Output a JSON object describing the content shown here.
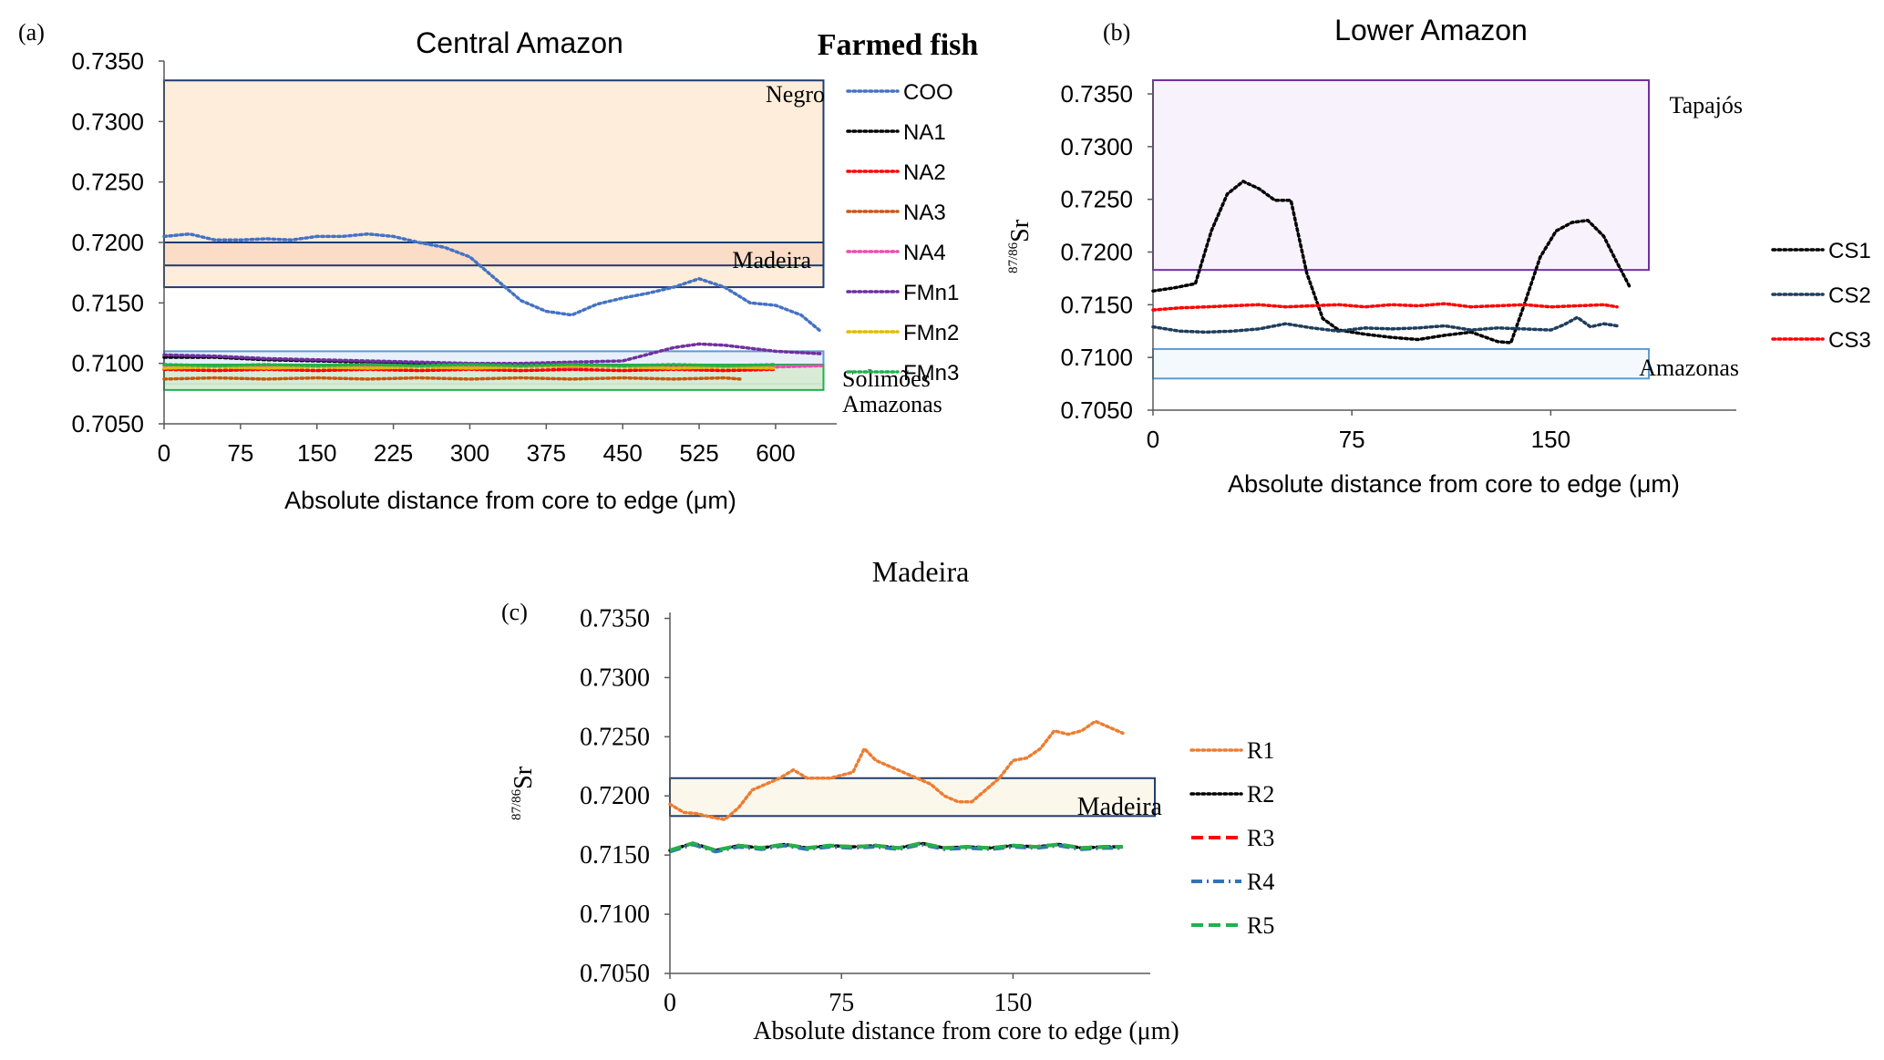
{
  "figure": {
    "panel_a": {
      "letter": "(a)",
      "title": "Central Amazon",
      "group_title": "Farmed fish",
      "xlabel": "Absolute distance from core to edge (μm)"
    },
    "panel_b": {
      "letter": "(b)",
      "title": "Lower Amazon",
      "ylabel": "Sr",
      "ylabel_sup": "87/86",
      "xlabel": "Absolute distance from core to edge  (μm)"
    },
    "panel_c": {
      "letter": "(c)",
      "title": "Madeira",
      "ylabel": "Sr",
      "ylabel_sup": "87/86",
      "xlabel": "Absolute distance from core to edge (μm)"
    }
  },
  "chart_data": [
    {
      "id": "a",
      "type": "line",
      "title": "Central Amazon",
      "xlabel": "Absolute distance from core to edge (μm)",
      "ylabel": "",
      "xlim": [
        0,
        660
      ],
      "ylim": [
        0.705,
        0.735
      ],
      "xticks": [
        "0",
        "75",
        "150",
        "225",
        "300",
        "375",
        "450",
        "525",
        "600"
      ],
      "yticks": [
        "0.7050",
        "0.7100",
        "0.7150",
        "0.7200",
        "0.7250",
        "0.7300",
        "0.7350"
      ],
      "legend_position": "right",
      "regions": [
        {
          "name": "Negro",
          "y": [
            0.7163,
            0.7334
          ],
          "x": [
            0,
            647
          ],
          "fill": "#fdebd6",
          "stroke": "#1f3b73"
        },
        {
          "name": "Madeira",
          "y": [
            0.7181,
            0.72
          ],
          "x": [
            0,
            647
          ],
          "fill": "#f9d9c4",
          "stroke": "#1f3b73"
        },
        {
          "name": "Solimões",
          "y": [
            0.7083,
            0.711
          ],
          "x": [
            0,
            647
          ],
          "fill": "#e6eef8",
          "stroke": "#5b9bd5"
        },
        {
          "name": "Amazonas",
          "y": [
            0.7078,
            0.7099
          ],
          "x": [
            0,
            647
          ],
          "fill": "#d6ead0",
          "stroke": "#22b14c"
        }
      ],
      "series": [
        {
          "name": "COO",
          "color": "#4472c4",
          "style": "dotted",
          "x": [
            0,
            25,
            50,
            75,
            100,
            125,
            150,
            175,
            200,
            225,
            250,
            275,
            300,
            325,
            350,
            375,
            400,
            425,
            450,
            475,
            500,
            525,
            550,
            575,
            600,
            625,
            645
          ],
          "y": [
            0.7205,
            0.7207,
            0.7202,
            0.7202,
            0.7203,
            0.7202,
            0.7205,
            0.7205,
            0.7207,
            0.7205,
            0.72,
            0.7196,
            0.7188,
            0.717,
            0.7152,
            0.7143,
            0.714,
            0.7149,
            0.7154,
            0.7158,
            0.7163,
            0.717,
            0.7163,
            0.715,
            0.7148,
            0.714,
            0.7126
          ]
        },
        {
          "name": "NA1",
          "color": "#000000",
          "style": "dotted",
          "x": [
            0,
            50,
            100,
            150,
            200,
            250,
            300,
            350,
            400,
            450,
            500,
            550,
            600
          ],
          "y": [
            0.7105,
            0.7105,
            0.7103,
            0.7102,
            0.7101,
            0.71,
            0.71,
            0.7099,
            0.7099,
            0.7098,
            0.7098,
            0.7097,
            0.7097
          ]
        },
        {
          "name": "NA2",
          "color": "#ff0000",
          "style": "dotted",
          "x": [
            0,
            50,
            100,
            150,
            200,
            250,
            300,
            350,
            400,
            450,
            500,
            550,
            600
          ],
          "y": [
            0.7095,
            0.7094,
            0.7095,
            0.7094,
            0.7095,
            0.7094,
            0.7095,
            0.7094,
            0.7095,
            0.7094,
            0.7095,
            0.7094,
            0.7095
          ]
        },
        {
          "name": "NA3",
          "color": "#c55a11",
          "style": "dotted",
          "x": [
            0,
            50,
            100,
            150,
            200,
            250,
            300,
            350,
            400,
            450,
            500,
            550,
            565
          ],
          "y": [
            0.7087,
            0.7088,
            0.7087,
            0.7088,
            0.7087,
            0.7088,
            0.7087,
            0.7088,
            0.7087,
            0.7088,
            0.7087,
            0.7088,
            0.7087
          ]
        },
        {
          "name": "NA4",
          "color": "#e84fb0",
          "style": "dotted",
          "x": [
            0,
            50,
            100,
            150,
            200,
            250,
            300,
            350,
            400,
            450,
            500,
            550,
            600,
            645
          ],
          "y": [
            0.7098,
            0.7098,
            0.7097,
            0.7098,
            0.7097,
            0.7098,
            0.7097,
            0.7098,
            0.7097,
            0.7098,
            0.7097,
            0.7098,
            0.7097,
            0.7098
          ]
        },
        {
          "name": "FMn1",
          "color": "#7030a0",
          "style": "dotted",
          "x": [
            0,
            50,
            100,
            150,
            200,
            250,
            300,
            350,
            400,
            450,
            500,
            525,
            550,
            600,
            645
          ],
          "y": [
            0.7107,
            0.7106,
            0.7104,
            0.7103,
            0.7102,
            0.7101,
            0.71,
            0.71,
            0.7101,
            0.7102,
            0.7113,
            0.7116,
            0.7115,
            0.711,
            0.7108
          ]
        },
        {
          "name": "FMn2",
          "color": "#e6b800",
          "style": "dotted",
          "x": [
            0,
            50,
            100,
            150,
            200,
            250,
            300,
            350,
            400,
            450,
            500,
            550,
            600
          ],
          "y": [
            0.7096,
            0.7097,
            0.7096,
            0.7097,
            0.7096,
            0.7097,
            0.7096,
            0.7097,
            0.7098,
            0.7097,
            0.7096,
            0.7097,
            0.7096
          ]
        },
        {
          "name": "FMn3",
          "color": "#22b14c",
          "style": "dotted",
          "x": [
            0,
            50,
            100,
            150,
            200,
            250,
            300,
            350,
            400,
            450,
            500,
            550,
            600
          ],
          "y": [
            0.7099,
            0.7098,
            0.7099,
            0.7098,
            0.7099,
            0.7098,
            0.7099,
            0.7098,
            0.7099,
            0.7098,
            0.7099,
            0.7098,
            0.7099
          ]
        }
      ]
    },
    {
      "id": "b",
      "type": "line",
      "title": "Lower Amazon",
      "xlabel": "Absolute distance from core to edge  (μm)",
      "ylabel": "87/86Sr",
      "xlim": [
        0,
        220
      ],
      "ylim": [
        0.705,
        0.7363
      ],
      "xticks": [
        "0",
        "75",
        "150"
      ],
      "yticks": [
        "0.7050",
        "0.7100",
        "0.7150",
        "0.7200",
        "0.7250",
        "0.7300",
        "0.7350"
      ],
      "legend_position": "right",
      "regions": [
        {
          "name": "Tapajós",
          "y": [
            0.7183,
            0.7363
          ],
          "x": [
            0,
            187
          ],
          "fill": "#f6f1fb",
          "stroke": "#7030a0"
        },
        {
          "name": "Amazonas",
          "y": [
            0.708,
            0.7108
          ],
          "x": [
            0,
            187
          ],
          "fill": "#f2f8fd",
          "stroke": "#5b9bd5"
        }
      ],
      "series": [
        {
          "name": "CS1",
          "color": "#000000",
          "style": "dotted",
          "x": [
            0,
            8,
            16,
            22,
            28,
            34,
            40,
            46,
            52,
            58,
            64,
            70,
            80,
            90,
            100,
            110,
            120,
            130,
            135,
            140,
            146,
            152,
            158,
            164,
            170,
            175,
            180
          ],
          "y": [
            0.7163,
            0.7166,
            0.717,
            0.722,
            0.7255,
            0.7267,
            0.726,
            0.7249,
            0.7249,
            0.718,
            0.7137,
            0.7126,
            0.7122,
            0.7119,
            0.7117,
            0.7121,
            0.7124,
            0.7115,
            0.7114,
            0.715,
            0.7195,
            0.722,
            0.7228,
            0.723,
            0.7215,
            0.719,
            0.7166
          ]
        },
        {
          "name": "CS2",
          "color": "#1f3d5c",
          "style": "dotted",
          "x": [
            0,
            10,
            20,
            30,
            40,
            50,
            60,
            70,
            80,
            90,
            100,
            110,
            120,
            130,
            140,
            150,
            155,
            160,
            165,
            170,
            175
          ],
          "y": [
            0.7129,
            0.7125,
            0.7124,
            0.7125,
            0.7127,
            0.7132,
            0.7128,
            0.7125,
            0.7128,
            0.7127,
            0.7128,
            0.713,
            0.7126,
            0.7128,
            0.7127,
            0.7126,
            0.7131,
            0.7138,
            0.7129,
            0.7132,
            0.713
          ]
        },
        {
          "name": "CS3",
          "color": "#ff0000",
          "style": "dotted",
          "x": [
            0,
            10,
            20,
            30,
            40,
            50,
            60,
            70,
            80,
            90,
            100,
            110,
            120,
            130,
            140,
            150,
            160,
            170,
            175
          ],
          "y": [
            0.7145,
            0.7147,
            0.7148,
            0.7149,
            0.715,
            0.7148,
            0.7149,
            0.715,
            0.7148,
            0.715,
            0.7149,
            0.7151,
            0.7148,
            0.7149,
            0.715,
            0.7148,
            0.7149,
            0.715,
            0.7148
          ]
        }
      ]
    },
    {
      "id": "c",
      "type": "line",
      "title": "Madeira",
      "xlabel": "Absolute distance from core to edge (μm)",
      "ylabel": "87/86Sr",
      "xlim": [
        0,
        210
      ],
      "ylim": [
        0.705,
        0.7355
      ],
      "xticks": [
        "0",
        "75",
        "150"
      ],
      "yticks": [
        "0.7050",
        "0.7100",
        "0.7150",
        "0.7200",
        "0.7250",
        "0.7300",
        "0.7350"
      ],
      "legend_position": "right",
      "regions": [
        {
          "name": "Madeira",
          "y": [
            0.7183,
            0.7215
          ],
          "x": [
            0,
            212
          ],
          "fill": "#fbf6e9",
          "stroke": "#1f3b73"
        }
      ],
      "series": [
        {
          "name": "R1",
          "color": "#ed7d31",
          "style": "dotted",
          "x": [
            0,
            6,
            12,
            18,
            24,
            30,
            36,
            42,
            48,
            54,
            60,
            70,
            80,
            85,
            90,
            96,
            102,
            108,
            114,
            120,
            126,
            132,
            138,
            144,
            150,
            156,
            162,
            168,
            174,
            180,
            186,
            192,
            198
          ],
          "y": [
            0.7193,
            0.7186,
            0.7185,
            0.7182,
            0.718,
            0.719,
            0.7205,
            0.721,
            0.7215,
            0.7222,
            0.7215,
            0.7215,
            0.722,
            0.724,
            0.723,
            0.7225,
            0.722,
            0.7215,
            0.721,
            0.72,
            0.7195,
            0.7195,
            0.7205,
            0.7215,
            0.723,
            0.7232,
            0.724,
            0.7255,
            0.7252,
            0.7255,
            0.7263,
            0.7258,
            0.7253
          ]
        },
        {
          "name": "R2",
          "color": "#000000",
          "style": "dotted",
          "x": [
            0,
            10,
            20,
            30,
            40,
            50,
            60,
            70,
            80,
            90,
            100,
            110,
            120,
            130,
            140,
            150,
            160,
            170,
            180,
            190,
            198
          ],
          "y": [
            0.7154,
            0.716,
            0.7154,
            0.7158,
            0.7156,
            0.7159,
            0.7156,
            0.7158,
            0.7157,
            0.7158,
            0.7156,
            0.716,
            0.7156,
            0.7157,
            0.7156,
            0.7158,
            0.7157,
            0.7159,
            0.7156,
            0.7157,
            0.7157
          ]
        },
        {
          "name": "R3",
          "color": "#ff0000",
          "style": "dashed",
          "x": [
            0,
            10,
            20,
            30,
            40,
            50,
            60,
            70,
            80,
            90,
            100,
            110,
            120,
            130,
            140,
            150,
            160,
            170,
            180,
            190,
            198
          ],
          "y": [
            0.7154,
            0.716,
            0.7154,
            0.7158,
            0.7156,
            0.7159,
            0.7156,
            0.7158,
            0.7157,
            0.7158,
            0.7156,
            0.716,
            0.7156,
            0.7157,
            0.7156,
            0.7158,
            0.7157,
            0.7159,
            0.7156,
            0.7157,
            0.7157
          ]
        },
        {
          "name": "R4",
          "color": "#2e75b6",
          "style": "dashdot",
          "x": [
            0,
            10,
            20,
            30,
            40,
            50,
            60,
            70,
            80,
            90,
            100,
            110,
            120,
            130,
            140,
            150,
            160,
            170,
            180,
            190,
            198
          ],
          "y": [
            0.7153,
            0.7159,
            0.7153,
            0.7157,
            0.7155,
            0.7158,
            0.7155,
            0.7157,
            0.7156,
            0.7157,
            0.7155,
            0.7159,
            0.7155,
            0.7156,
            0.7155,
            0.7157,
            0.7156,
            0.7158,
            0.7155,
            0.7156,
            0.7156
          ]
        },
        {
          "name": "R5",
          "color": "#22b14c",
          "style": "dashed",
          "x": [
            0,
            10,
            20,
            30,
            40,
            50,
            60,
            70,
            80,
            90,
            100,
            110,
            120,
            130,
            140,
            150,
            160,
            170,
            180,
            190,
            198
          ],
          "y": [
            0.7154,
            0.716,
            0.7154,
            0.7158,
            0.7156,
            0.7159,
            0.7156,
            0.7158,
            0.7157,
            0.7158,
            0.7156,
            0.716,
            0.7156,
            0.7157,
            0.7156,
            0.7158,
            0.7157,
            0.7159,
            0.7156,
            0.7157,
            0.7157
          ]
        }
      ]
    }
  ]
}
